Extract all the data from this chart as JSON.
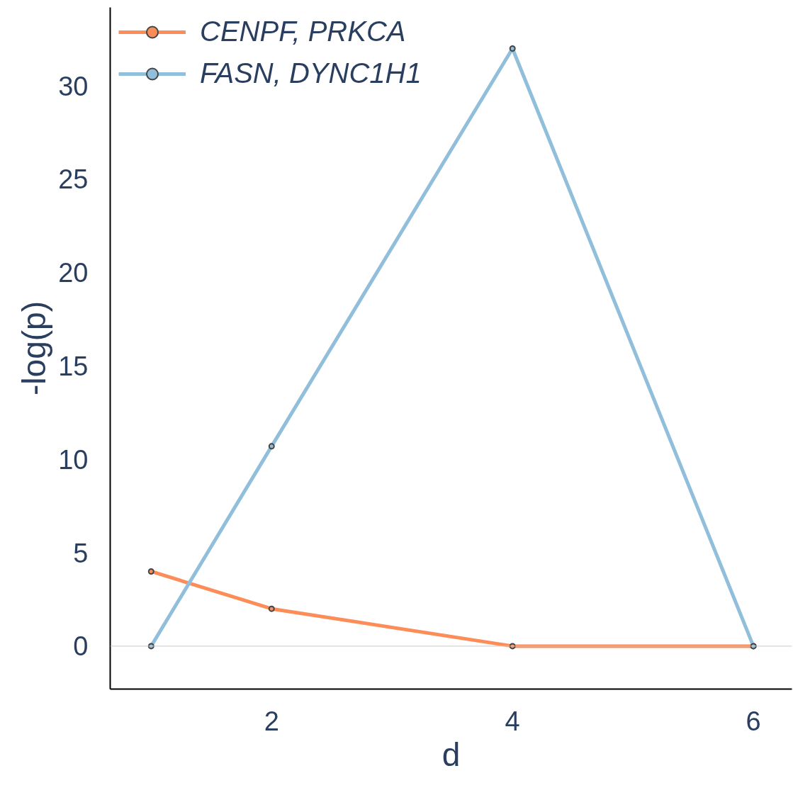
{
  "chart_data": {
    "type": "line",
    "xlabel": "d",
    "ylabel": "-log(p)",
    "x": [
      1,
      2,
      4,
      6
    ],
    "series": [
      {
        "name": "CENPF, PRKCA",
        "color": "#fc8d59",
        "values": [
          4.0,
          2.0,
          0,
          0
        ]
      },
      {
        "name": "FASN, DYNC1H1",
        "color": "#91bfdb",
        "values": [
          0,
          10.7,
          32.0,
          0
        ]
      }
    ],
    "xlim": [
      0.66,
      6.32
    ],
    "ylim": [
      -2.3,
      34.2
    ],
    "xticks": [
      2,
      4,
      6
    ],
    "yticks": [
      0,
      5,
      10,
      15,
      20,
      25,
      30
    ],
    "ref_lines": [
      {
        "axis": "y",
        "value": 0,
        "color": "#c8c8c8"
      }
    ],
    "grid": false,
    "legend": "top left",
    "marker": "circle",
    "line_style": "solid"
  }
}
